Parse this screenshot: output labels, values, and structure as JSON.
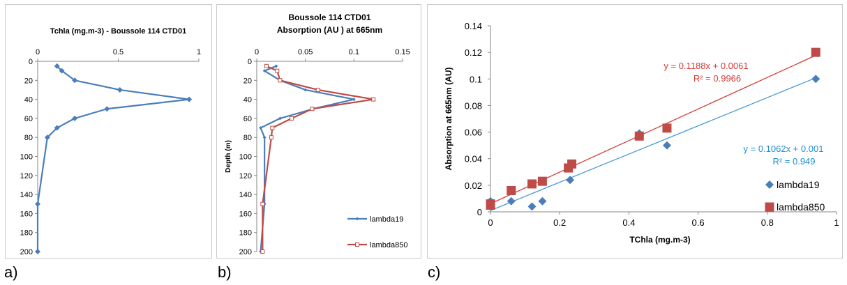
{
  "panel_labels": [
    "a)",
    "b)",
    "c)"
  ],
  "chart_data": [
    {
      "type": "line",
      "title": "Tchla (mg.m-3) - Boussole 114 CTD01",
      "orientation": "profile",
      "x_axis_position": "top",
      "xlim": [
        0,
        1
      ],
      "xticks": [
        "0",
        "0.5",
        "1"
      ],
      "ylim": [
        0,
        200
      ],
      "y_reversed": true,
      "yticks": [
        "0",
        "20",
        "40",
        "60",
        "80",
        "100",
        "120",
        "140",
        "160",
        "180",
        "200"
      ],
      "grid": false,
      "series": [
        {
          "color": "#4a7ebb",
          "marker": "diamond",
          "points": [
            [
              0.12,
              5
            ],
            [
              0.15,
              10
            ],
            [
              0.23,
              20
            ],
            [
              0.51,
              30
            ],
            [
              0.94,
              40
            ],
            [
              0.43,
              50
            ],
            [
              0.23,
              60
            ],
            [
              0.12,
              70
            ],
            [
              0.06,
              80
            ],
            [
              0.0,
              150
            ],
            [
              0.0,
              200
            ]
          ]
        }
      ]
    },
    {
      "type": "line",
      "title": "Boussole 114 CTD01",
      "subtitle": "Absorption (AU ) at 665nm",
      "orientation": "profile",
      "x_axis_position": "top",
      "ylabel": "Depth (m)",
      "xlim": [
        0,
        0.15
      ],
      "xticks": [
        "0",
        "0.05",
        "0.1",
        "0.15"
      ],
      "ylim": [
        0,
        200
      ],
      "y_reversed": true,
      "yticks": [
        "0",
        "20",
        "40",
        "60",
        "80",
        "100",
        "120",
        "140",
        "160",
        "180",
        "200"
      ],
      "legend_position": "bottom-right",
      "grid": false,
      "series": [
        {
          "name": "lambda19",
          "color": "#4a7ebb",
          "marker": "diamond",
          "points": [
            [
              0.02,
              5
            ],
            [
              0.008,
              10
            ],
            [
              0.024,
              20
            ],
            [
              0.05,
              30
            ],
            [
              0.1,
              40
            ],
            [
              0.058,
              50
            ],
            [
              0.024,
              60
            ],
            [
              0.004,
              70
            ],
            [
              0.008,
              80
            ],
            [
              0.008,
              150
            ],
            [
              0.004,
              200
            ]
          ]
        },
        {
          "name": "lambda850",
          "color": "#be4b48",
          "marker": "square",
          "points": [
            [
              0.01,
              5
            ],
            [
              0.021,
              10
            ],
            [
              0.024,
              20
            ],
            [
              0.063,
              30
            ],
            [
              0.12,
              40
            ],
            [
              0.057,
              50
            ],
            [
              0.036,
              60
            ],
            [
              0.016,
              70
            ],
            [
              0.015,
              80
            ],
            [
              0.006,
              150
            ],
            [
              0.006,
              200
            ]
          ]
        }
      ]
    },
    {
      "type": "scatter",
      "xlabel": "TChla (mg.m-3)",
      "ylabel": "Absorption at 665nm (AU)",
      "xlim": [
        0,
        1
      ],
      "xticks": [
        "0",
        "0.2",
        "0.4",
        "0.6",
        "0.8",
        "1"
      ],
      "ylim": [
        0,
        0.14
      ],
      "yticks": [
        "0",
        "0.02",
        "0.04",
        "0.06",
        "0.08",
        "0.1",
        "0.12",
        "0.14"
      ],
      "legend_position": "right",
      "grid": false,
      "series": [
        {
          "name": "lambda19",
          "color": "#4a7ebb",
          "marker": "diamond",
          "points": [
            [
              0.0,
              0.004
            ],
            [
              0.0,
              0.008
            ],
            [
              0.06,
              0.008
            ],
            [
              0.12,
              0.004
            ],
            [
              0.15,
              0.008
            ],
            [
              0.23,
              0.024
            ],
            [
              0.43,
              0.059
            ],
            [
              0.51,
              0.05
            ],
            [
              0.94,
              0.1
            ]
          ],
          "trendline": {
            "slope": 0.1062,
            "intercept": 0.001,
            "color": "#4a9ad6"
          },
          "equation": "y = 0.1062x + 0.001",
          "r2": "R² = 0.949"
        },
        {
          "name": "lambda850",
          "color": "#be4b48",
          "marker": "square",
          "points": [
            [
              0.0,
              0.006
            ],
            [
              0.0,
              0.005
            ],
            [
              0.06,
              0.016
            ],
            [
              0.12,
              0.021
            ],
            [
              0.15,
              0.023
            ],
            [
              0.225,
              0.033
            ],
            [
              0.235,
              0.036
            ],
            [
              0.43,
              0.057
            ],
            [
              0.51,
              0.063
            ],
            [
              0.94,
              0.12
            ]
          ],
          "trendline": {
            "slope": 0.1188,
            "intercept": 0.0061,
            "color": "#d23b35"
          },
          "equation": "y = 0.1188x + 0.0061",
          "r2": "R² = 0.9966"
        }
      ]
    }
  ]
}
